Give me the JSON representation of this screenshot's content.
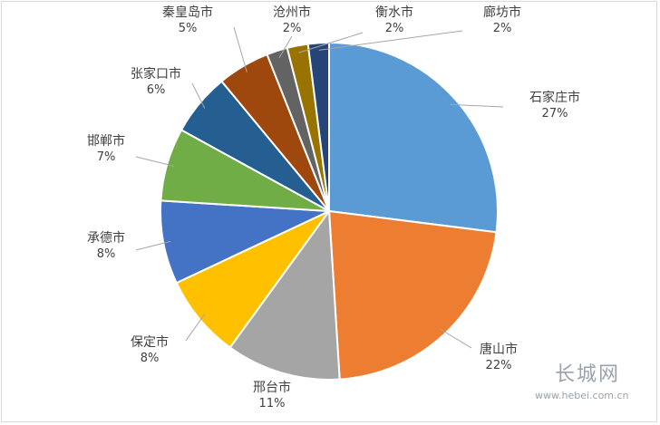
{
  "chart_data": {
    "type": "pie",
    "title": "",
    "legend": "none",
    "slices": [
      {
        "label": "石家庄市",
        "value": 27,
        "display": "27%",
        "color": "#5b9bd5"
      },
      {
        "label": "唐山市",
        "value": 22,
        "display": "22%",
        "color": "#ed7d31"
      },
      {
        "label": "邢台市",
        "value": 11,
        "display": "11%",
        "color": "#a5a5a5"
      },
      {
        "label": "保定市",
        "value": 8,
        "display": "8%",
        "color": "#ffc000"
      },
      {
        "label": "承德市",
        "value": 8,
        "display": "8%",
        "color": "#4472c4"
      },
      {
        "label": "邯郸市",
        "value": 7,
        "display": "7%",
        "color": "#70ad47"
      },
      {
        "label": "张家口市",
        "value": 6,
        "display": "6%",
        "color": "#255e91"
      },
      {
        "label": "秦皇岛市",
        "value": 5,
        "display": "5%",
        "color": "#9e480e"
      },
      {
        "label": "沧州市",
        "value": 2,
        "display": "2%",
        "color": "#636363"
      },
      {
        "label": "衡水市",
        "value": 2,
        "display": "2%",
        "color": "#997300"
      },
      {
        "label": "廊坊市",
        "value": 2,
        "display": "2%",
        "color": "#264478"
      }
    ]
  },
  "watermark": {
    "text": "长城网",
    "url": "www.hebei.com.cn"
  }
}
